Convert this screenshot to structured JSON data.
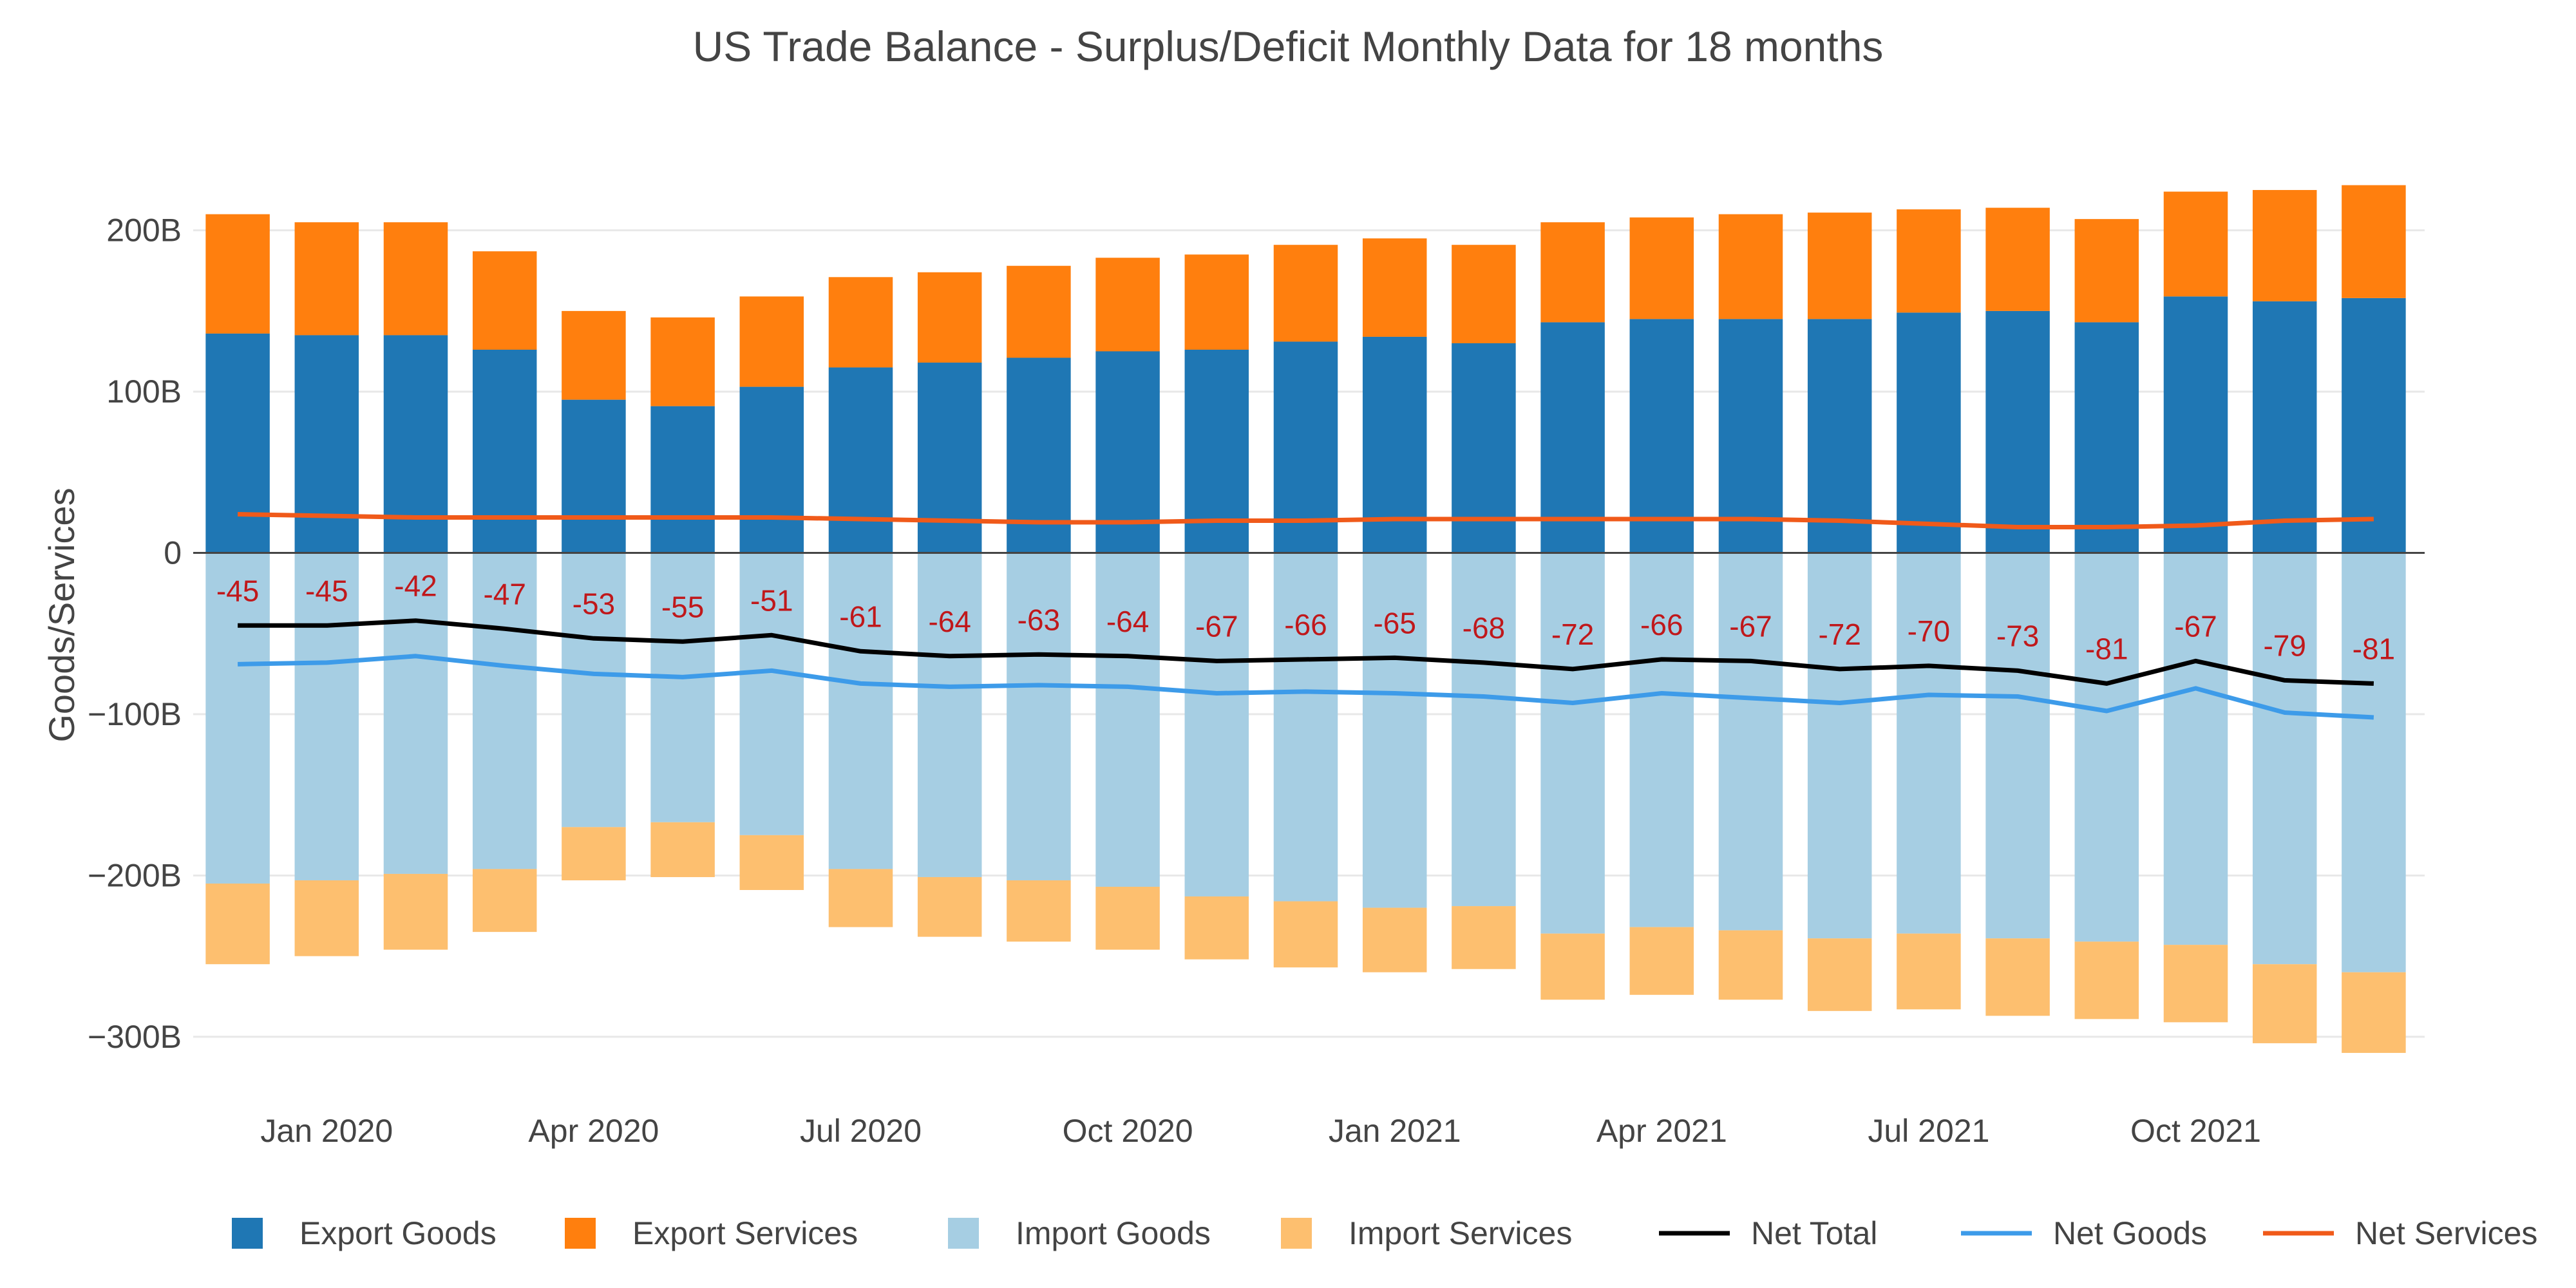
{
  "chart_data": {
    "type": "bar",
    "title": "US Trade Balance - Surplus/Deficit Monthly Data for 18 months",
    "ylabel": "Goods/Services",
    "xlabel": "",
    "ylim": [
      -320,
      235
    ],
    "y_ticks": [
      {
        "value": 200,
        "label": "200B"
      },
      {
        "value": 100,
        "label": "100B"
      },
      {
        "value": 0,
        "label": "0"
      },
      {
        "value": -100,
        "label": "−100B"
      },
      {
        "value": -200,
        "label": "−200B"
      },
      {
        "value": -300,
        "label": "−300B"
      }
    ],
    "x_ticks": [
      {
        "index": 1,
        "label": "Jan 2020"
      },
      {
        "index": 4,
        "label": "Apr 2020"
      },
      {
        "index": 7,
        "label": "Jul 2020"
      },
      {
        "index": 10,
        "label": "Oct 2020"
      },
      {
        "index": 13,
        "label": "Jan 2021"
      },
      {
        "index": 16,
        "label": "Apr 2021"
      },
      {
        "index": 19,
        "label": "Jul 2021"
      },
      {
        "index": 22,
        "label": "Oct 2021"
      }
    ],
    "categories": [
      "2019-12",
      "2020-01",
      "2020-02",
      "2020-03",
      "2020-04",
      "2020-05",
      "2020-06",
      "2020-07",
      "2020-08",
      "2020-09",
      "2020-10",
      "2020-11",
      "2020-12",
      "2021-01",
      "2021-02",
      "2021-03",
      "2021-04",
      "2021-05",
      "2021-06",
      "2021-07",
      "2021-08",
      "2021-09",
      "2021-10",
      "2021-11",
      "2021-12"
    ],
    "bar_series": [
      {
        "name": "Export Goods",
        "color": "#1f77b4",
        "values": [
          136,
          135,
          135,
          126,
          95,
          91,
          103,
          115,
          118,
          121,
          125,
          126,
          131,
          134,
          130,
          143,
          145,
          145,
          145,
          149,
          150,
          143,
          159,
          156,
          158
        ]
      },
      {
        "name": "Export Services",
        "color": "#ff7f0e",
        "values": [
          74,
          70,
          70,
          61,
          55,
          55,
          56,
          56,
          56,
          57,
          58,
          59,
          60,
          61,
          61,
          62,
          63,
          65,
          66,
          64,
          64,
          64,
          65,
          69,
          70
        ]
      },
      {
        "name": "Import Goods",
        "color": "#a6cee3",
        "values": [
          -205,
          -203,
          -199,
          -196,
          -170,
          -167,
          -175,
          -196,
          -201,
          -203,
          -207,
          -213,
          -216,
          -220,
          -219,
          -236,
          -232,
          -234,
          -239,
          -236,
          -239,
          -241,
          -243,
          -255,
          -260
        ]
      },
      {
        "name": "Import Services",
        "color": "#fdbf6f",
        "values": [
          -50,
          -47,
          -47,
          -39,
          -33,
          -34,
          -34,
          -36,
          -37,
          -38,
          -39,
          -39,
          -41,
          -40,
          -39,
          -41,
          -42,
          -43,
          -45,
          -47,
          -48,
          -48,
          -48,
          -49,
          -50
        ]
      }
    ],
    "line_series": [
      {
        "name": "Net Total",
        "color": "#000000",
        "values": [
          -45,
          -45,
          -42,
          -47,
          -53,
          -55,
          -51,
          -61,
          -64,
          -63,
          -64,
          -67,
          -66,
          -65,
          -68,
          -72,
          -66,
          -67,
          -72,
          -70,
          -73,
          -81,
          -67,
          -79,
          -81
        ]
      },
      {
        "name": "Net Goods",
        "color": "#3d9be9",
        "values": [
          -69,
          -68,
          -64,
          -70,
          -75,
          -77,
          -73,
          -81,
          -83,
          -82,
          -83,
          -87,
          -86,
          -87,
          -89,
          -93,
          -87,
          -90,
          -93,
          -88,
          -89,
          -98,
          -84,
          -99,
          -102
        ]
      },
      {
        "name": "Net Services",
        "color": "#f05a1a",
        "values": [
          24,
          23,
          22,
          22,
          22,
          22,
          22,
          21,
          20,
          19,
          19,
          20,
          20,
          21,
          21,
          21,
          21,
          21,
          20,
          18,
          16,
          16,
          17,
          20,
          21
        ]
      }
    ],
    "data_labels": [
      "-45",
      "-45",
      "-42",
      "-47",
      "-53",
      "-55",
      "-51",
      "-61",
      "-64",
      "-63",
      "-64",
      "-67",
      "-66",
      "-65",
      "-68",
      "-72",
      "-66",
      "-67",
      "-72",
      "-70",
      "-73",
      "-81",
      "-67",
      "-79",
      "-81"
    ],
    "legend": {
      "placement": "bottom",
      "items": [
        {
          "name": "Export Goods",
          "kind": "box",
          "color": "#1f77b4"
        },
        {
          "name": "Export Services",
          "kind": "box",
          "color": "#ff7f0e"
        },
        {
          "name": "Import Goods",
          "kind": "box",
          "color": "#a6cee3"
        },
        {
          "name": "Import Services",
          "kind": "box",
          "color": "#fdbf6f"
        },
        {
          "name": "Net Total",
          "kind": "line",
          "color": "#000000"
        },
        {
          "name": "Net Goods",
          "kind": "line",
          "color": "#3d9be9"
        },
        {
          "name": "Net Services",
          "kind": "line",
          "color": "#f05a1a"
        }
      ]
    },
    "grid": true,
    "label_color": "#c0181b"
  }
}
